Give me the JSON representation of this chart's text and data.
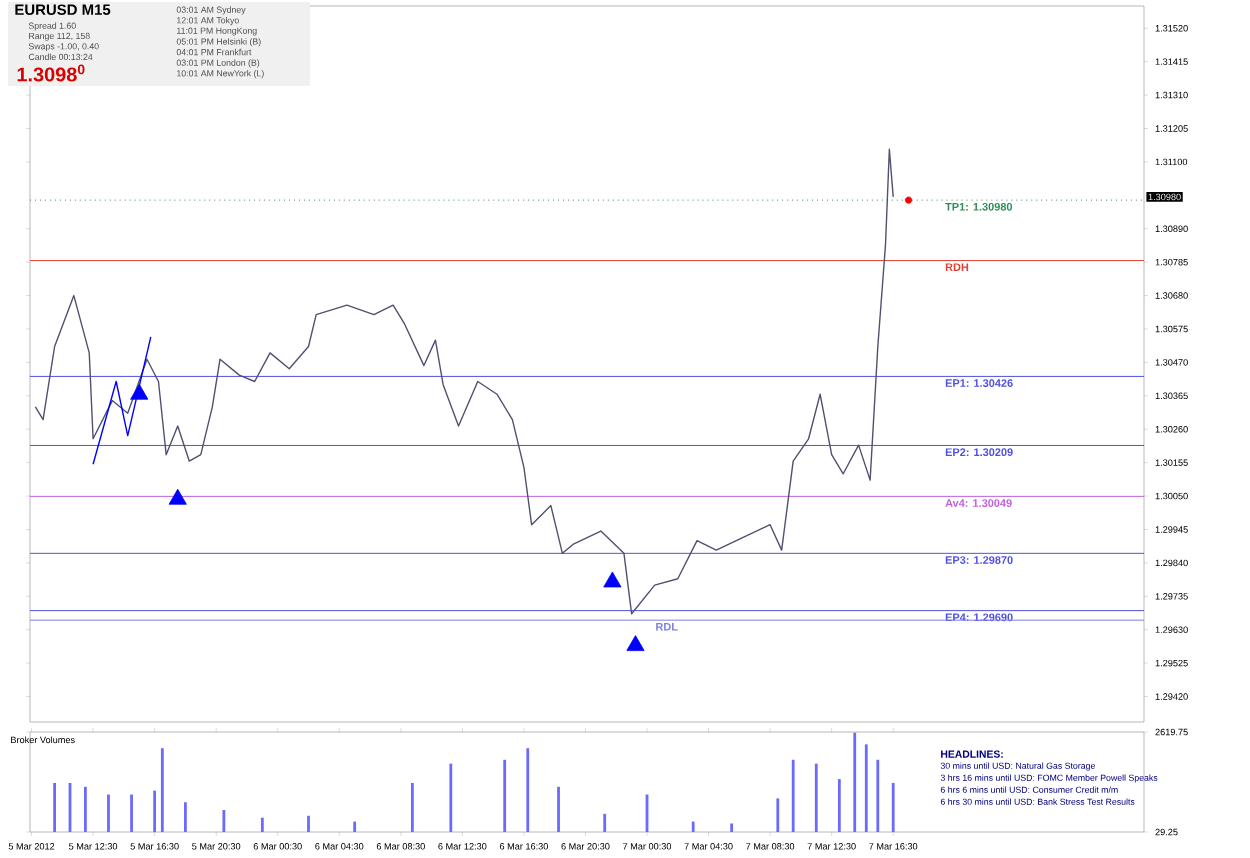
{
  "chart_data": [
    {
      "type": "line",
      "title": "EURUSD  M15",
      "xlim": [
        "2012-03-05T08:24",
        "2012-03-08T08:48"
      ],
      "ylim": [
        1.2934,
        1.3159
      ],
      "tick_labels": "y",
      "yticks": [
        {
          "value": 1.2942,
          "label": "1.29420"
        },
        {
          "value": 1.29525,
          "label": "1.29525"
        },
        {
          "value": 1.2963,
          "label": "1.29630"
        },
        {
          "value": 1.29735,
          "label": "1.29735"
        },
        {
          "value": 1.2984,
          "label": "1.29840"
        },
        {
          "value": 1.29945,
          "label": "1.29945"
        },
        {
          "value": 1.3005,
          "label": "1.30050"
        },
        {
          "value": 1.30155,
          "label": "1.30155"
        },
        {
          "value": 1.3026,
          "label": "1.30260"
        },
        {
          "value": 1.30365,
          "label": "1.30365"
        },
        {
          "value": 1.3047,
          "label": "1.30470"
        },
        {
          "value": 1.30575,
          "label": "1.30575"
        },
        {
          "value": 1.3068,
          "label": "1.30680"
        },
        {
          "value": 1.30785,
          "label": "1.30785"
        },
        {
          "value": 1.3089,
          "label": "1.30890"
        },
        {
          "value": 1.311,
          "label": "1.31100"
        },
        {
          "value": 1.31205,
          "label": "1.31205"
        },
        {
          "value": 1.3131,
          "label": "1.31310"
        },
        {
          "value": 1.31415,
          "label": "1.31415"
        },
        {
          "value": 1.3152,
          "label": "1.31520"
        }
      ],
      "series": [
        {
          "type": "line",
          "color": "#505070",
          "x": [
            "2012-03-05T08:45",
            "2012-03-05T09:15",
            "2012-03-05T10:00",
            "2012-03-05T11:15",
            "2012-03-05T12:15",
            "2012-03-05T12:30",
            "2012-03-05T13:45",
            "2012-03-05T14:45",
            "2012-03-05T16:00",
            "2012-03-05T16:45",
            "2012-03-05T17:15",
            "2012-03-05T18:00",
            "2012-03-05T18:45",
            "2012-03-05T19:30",
            "2012-03-05T20:15",
            "2012-03-05T20:45",
            "2012-03-05T22:00",
            "2012-03-05T23:00",
            "2012-03-06T00:00",
            "2012-03-06T01:15",
            "2012-03-06T02:30",
            "2012-03-06T03:00",
            "2012-03-06T05:00",
            "2012-03-06T06:45",
            "2012-03-06T08:00",
            "2012-03-06T08:45",
            "2012-03-06T10:00",
            "2012-03-06T10:45",
            "2012-03-06T11:15",
            "2012-03-06T12:15",
            "2012-03-06T13:30",
            "2012-03-06T14:45",
            "2012-03-06T15:45",
            "2012-03-06T16:30",
            "2012-03-06T17:00",
            "2012-03-06T18:15",
            "2012-03-06T19:00",
            "2012-03-06T19:45",
            "2012-03-06T21:30",
            "2012-03-06T23:00",
            "2012-03-06T23:30",
            "2012-03-07T01:00",
            "2012-03-07T02:30",
            "2012-03-07T03:45",
            "2012-03-07T05:00",
            "2012-03-07T06:45",
            "2012-03-07T08:30",
            "2012-03-07T09:15",
            "2012-03-07T10:00",
            "2012-03-07T11:00",
            "2012-03-07T11:45",
            "2012-03-07T12:30",
            "2012-03-07T13:15",
            "2012-03-07T14:15",
            "2012-03-07T15:00",
            "2012-03-07T15:30",
            "2012-03-07T16:00",
            "2012-03-07T16:15",
            "2012-03-07T16:30"
          ],
          "values": [
            1.3033,
            1.3029,
            1.3052,
            1.3068,
            1.305,
            1.3023,
            1.3035,
            1.3031,
            1.3048,
            1.3041,
            1.3018,
            1.3027,
            1.3016,
            1.3018,
            1.3033,
            1.3048,
            1.3043,
            1.3041,
            1.305,
            1.3045,
            1.3052,
            1.3062,
            1.3065,
            1.3062,
            1.3065,
            1.3059,
            1.3046,
            1.3054,
            1.304,
            1.3027,
            1.3041,
            1.3037,
            1.3029,
            1.3014,
            1.2996,
            1.3002,
            1.2987,
            1.299,
            1.2994,
            1.2987,
            1.2968,
            1.2977,
            1.2979,
            1.2991,
            1.2988,
            1.2992,
            1.2996,
            1.2988,
            1.3016,
            1.3023,
            1.3037,
            1.3018,
            1.3012,
            1.3021,
            1.301,
            1.3052,
            1.3084,
            1.3114,
            1.3099
          ]
        },
        {
          "type": "line",
          "color": "#0000ff",
          "x": [
            "2012-03-05T12:30",
            "2012-03-05T14:00",
            "2012-03-05T14:45",
            "2012-03-05T16:15"
          ],
          "values": [
            1.3015,
            1.3041,
            1.3024,
            1.3055
          ]
        },
        {
          "type": "scatter",
          "marker": "triangle",
          "color": "#0000ff",
          "x": [
            "2012-03-05T15:30",
            "2012-03-05T18:00",
            "2012-03-06T22:15",
            "2012-03-06T23:45"
          ],
          "values": [
            1.3037,
            1.3004,
            1.2978,
            1.2958
          ]
        },
        {
          "type": "scatter",
          "marker": "circle",
          "color": "#ff0000",
          "x": [
            "2012-03-07T17:30"
          ],
          "values": [
            1.3098
          ]
        }
      ],
      "ref_lines": [
        {
          "axis": "y",
          "value": 1.3098,
          "label": "TP1:  1.30980",
          "color": "#2e8b57",
          "line_style": "dotted"
        },
        {
          "axis": "y",
          "value": 1.3079,
          "label": "RDH",
          "color": "#e04030",
          "line_style": "solid"
        },
        {
          "axis": "y",
          "value": 1.30426,
          "label": "EP1:  1.30426",
          "color": "#5050e0",
          "line_style": "solid"
        },
        {
          "axis": "y",
          "value": 1.30209,
          "label": "EP2:  1.30209",
          "color": "#5050e0",
          "line_style": "solid"
        },
        {
          "axis": "y",
          "value": 1.30049,
          "label": "Av4:  1.30049",
          "color": "#c060e0",
          "line_style": "solid"
        },
        {
          "axis": "y",
          "value": 1.2987,
          "label": "EP3:  1.29870",
          "color": "#5050e0",
          "line_style": "solid"
        },
        {
          "axis": "y",
          "value": 1.2969,
          "label": "EP4:  1.29690",
          "color": "#5050e0",
          "line_style": "solid"
        },
        {
          "axis": "y",
          "value": 1.2966,
          "label": "RDL",
          "color": "#8080e0",
          "line_style": "solid"
        }
      ],
      "annotations": [
        "Spread  1.60",
        "Range  112, 158",
        "Swaps  -1.00, 0.40",
        "Candle  00:13:24",
        "1.3098$^{0}$",
        "03:01 AM  Sydney",
        "12:01 AM  Tokyo",
        "11:01 PM  HongKong",
        "05:01 PM  Helsinki (B)",
        "04:01 PM  Frankfurt",
        "03:01 PM  London (B)",
        "10:01 AM  NewYork (L)",
        "1.30980"
      ]
    },
    {
      "type": "bar",
      "title": "Broker Volumes",
      "color": "#6a6aff",
      "xlim": [
        "2012-03-05T08:24",
        "2012-03-08T08:48"
      ],
      "ylim": [
        29.25,
        2619.75
      ],
      "yticks": [
        {
          "value": 29.25,
          "label": "29.25"
        },
        {
          "value": 2619.75,
          "label": "2619.75"
        }
      ],
      "xticks": [
        {
          "value": "2012-03-05T08:30",
          "label": "5 Mar 2012"
        },
        {
          "value": "2012-03-05T12:30",
          "label": "5 Mar 12:30"
        },
        {
          "value": "2012-03-05T16:30",
          "label": "5 Mar 16:30"
        },
        {
          "value": "2012-03-05T20:30",
          "label": "5 Mar 20:30"
        },
        {
          "value": "2012-03-06T00:30",
          "label": "6 Mar 00:30"
        },
        {
          "value": "2012-03-06T04:30",
          "label": "6 Mar 04:30"
        },
        {
          "value": "2012-03-06T08:30",
          "label": "6 Mar 08:30"
        },
        {
          "value": "2012-03-06T12:30",
          "label": "6 Mar 12:30"
        },
        {
          "value": "2012-03-06T16:30",
          "label": "6 Mar 16:30"
        },
        {
          "value": "2012-03-06T20:30",
          "label": "6 Mar 20:30"
        },
        {
          "value": "2012-03-07T00:30",
          "label": "7 Mar 00:30"
        },
        {
          "value": "2012-03-07T04:30",
          "label": "7 Mar 04:30"
        },
        {
          "value": "2012-03-07T08:30",
          "label": "7 Mar 08:30"
        },
        {
          "value": "2012-03-07T12:30",
          "label": "7 Mar 12:30"
        },
        {
          "value": "2012-03-07T16:30",
          "label": "7 Mar 16:30"
        }
      ],
      "x": [
        "2012-03-05T10:00",
        "2012-03-05T11:00",
        "2012-03-05T12:00",
        "2012-03-05T13:30",
        "2012-03-05T15:00",
        "2012-03-05T16:30",
        "2012-03-05T17:00",
        "2012-03-05T18:30",
        "2012-03-05T21:00",
        "2012-03-05T23:30",
        "2012-03-06T02:30",
        "2012-03-06T05:30",
        "2012-03-06T09:15",
        "2012-03-06T11:45",
        "2012-03-06T15:15",
        "2012-03-06T16:45",
        "2012-03-06T18:45",
        "2012-03-06T21:45",
        "2012-03-07T00:30",
        "2012-03-07T03:30",
        "2012-03-07T06:00",
        "2012-03-07T09:00",
        "2012-03-07T10:00",
        "2012-03-07T11:30",
        "2012-03-07T13:00",
        "2012-03-07T14:00",
        "2012-03-07T14:45",
        "2012-03-07T15:30",
        "2012-03-07T16:30"
      ],
      "values": [
        1300,
        1300,
        1200,
        1000,
        1000,
        1100,
        2200,
        800,
        600,
        400,
        450,
        300,
        1300,
        1800,
        1900,
        2200,
        1200,
        500,
        1000,
        300,
        250,
        900,
        1900,
        1800,
        1400,
        2600,
        2300,
        1900,
        1300
      ],
      "annotations": [
        "HEADLINES:",
        "30 mins until USD: Natural Gas Storage",
        "3 hrs 16 mins until USD: FOMC Member Powell Speaks",
        "6 hrs 6 mins until USD: Consumer Credit m/m",
        "6 hrs 30 mins until USD: Bank Stress Test Results"
      ]
    }
  ]
}
